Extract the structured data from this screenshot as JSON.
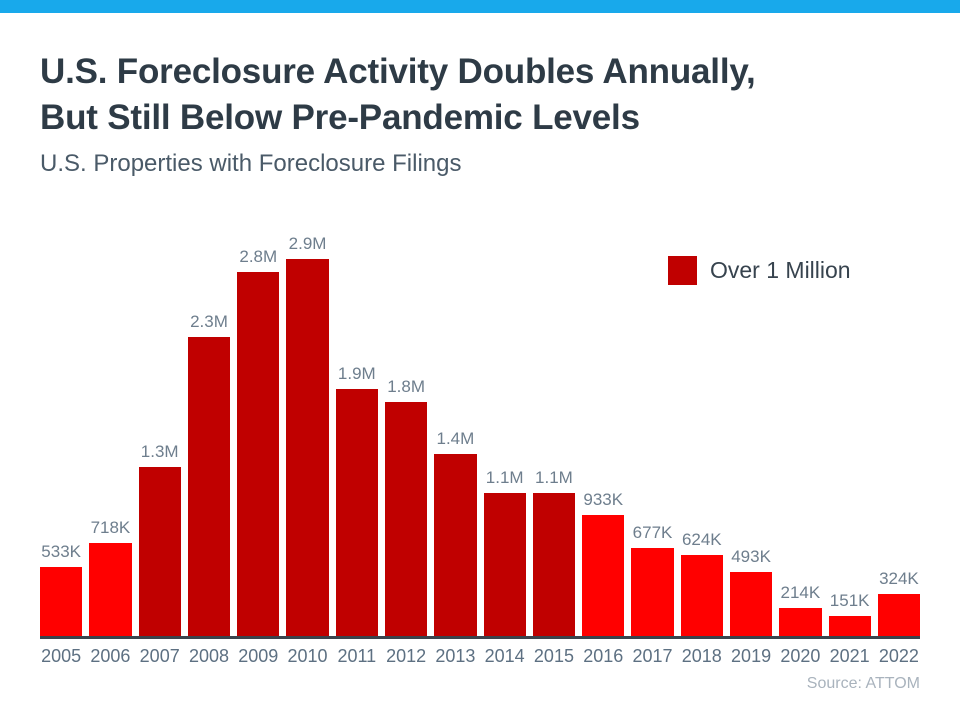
{
  "header": {
    "title_line1": "U.S. Foreclosure Activity Doubles Annually,",
    "title_line2": "But Still Below Pre-Pandemic Levels",
    "subtitle": "U.S. Properties with Foreclosure Filings"
  },
  "colors": {
    "top_accent_bar": "#18A9EB",
    "under_million_red": "#FF0000",
    "over_million_red": "#C00000",
    "title_text": "#2E3B46",
    "axis_line": "#3B434C",
    "label_gray": "#6E7E8D",
    "source_gray": "#A9B3BD"
  },
  "chart_data": {
    "type": "bar",
    "title": "U.S. Foreclosure Activity Doubles Annually, But Still Below Pre-Pandemic Levels",
    "subtitle": "U.S. Properties with Foreclosure Filings",
    "xlabel": "",
    "ylabel": "",
    "ylim": [
      0,
      3000000
    ],
    "grid": false,
    "categories": [
      "2005",
      "2006",
      "2007",
      "2008",
      "2009",
      "2010",
      "2011",
      "2012",
      "2013",
      "2014",
      "2015",
      "2016",
      "2017",
      "2018",
      "2019",
      "2020",
      "2021",
      "2022"
    ],
    "values": [
      533000,
      718000,
      1300000,
      2300000,
      2800000,
      2900000,
      1900000,
      1800000,
      1400000,
      1100000,
      1100000,
      933000,
      677000,
      624000,
      493000,
      214000,
      151000,
      324000
    ],
    "value_labels": [
      "533K",
      "718K",
      "1.3M",
      "2.3M",
      "2.8M",
      "2.9M",
      "1.9M",
      "1.8M",
      "1.4M",
      "1.1M",
      "1.1M",
      "933K",
      "677K",
      "624K",
      "493K",
      "214K",
      "151K",
      "324K"
    ],
    "over_one_million": [
      false,
      false,
      true,
      true,
      true,
      true,
      true,
      true,
      true,
      true,
      true,
      false,
      false,
      false,
      false,
      false,
      false,
      false
    ],
    "legend": [
      {
        "label": "Over 1 Million",
        "color": "#C00000"
      }
    ],
    "legend_position": "top-right",
    "source": "Source: ATTOM"
  }
}
